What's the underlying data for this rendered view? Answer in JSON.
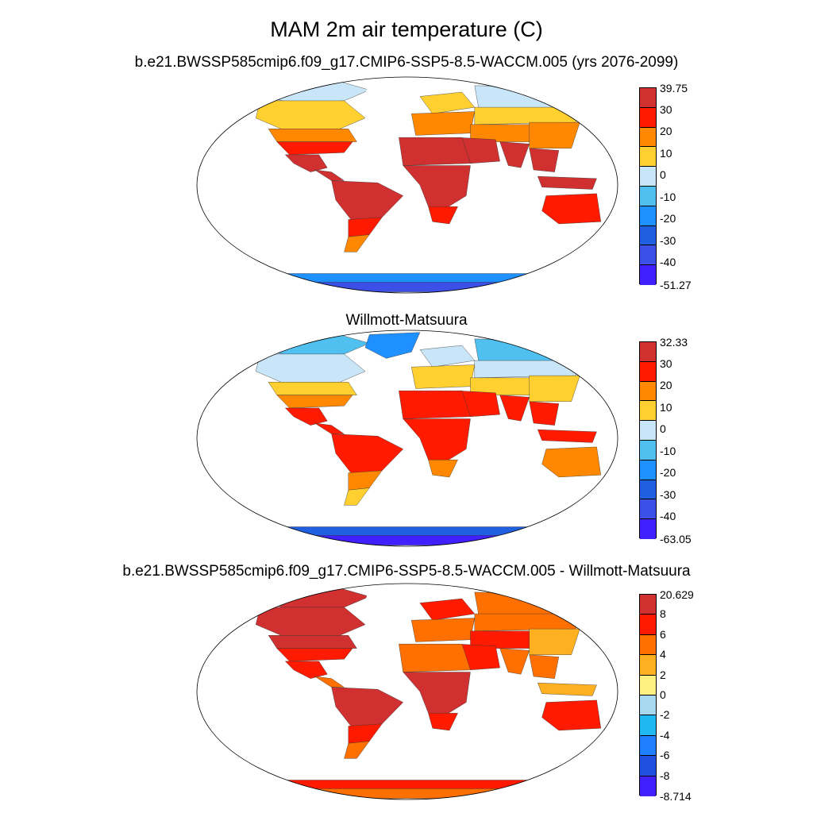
{
  "title": "MAM 2m air temperature (C)",
  "panels": [
    {
      "id": "model",
      "title": "b.e21.BWSSP585cmip6.f09_g17.CMIP6-SSP5-8.5-WACCM.005 (yrs 2076-2099)",
      "colorbar": {
        "labels": [
          "39.75",
          "30",
          "20",
          "10",
          "0",
          "-10",
          "-20",
          "-30",
          "-40",
          "-51.27"
        ],
        "colors": [
          "#d03030",
          "#ff1a00",
          "#ff8800",
          "#ffd030",
          "#c8e6f8",
          "#50c0f0",
          "#1e90ff",
          "#2060e0",
          "#3c50e8",
          "#4020ff"
        ]
      },
      "regions": {
        "arctic_canada": "#c8e6f8",
        "canada": "#ffd030",
        "usa_north": "#ff8800",
        "usa_south": "#ff1a00",
        "mexico": "#d03030",
        "central_america": "#d03030",
        "south_america_north": "#d03030",
        "south_america_south": "#ff1a00",
        "patagonia": "#ff8800",
        "greenland": "#ffffff",
        "europe_north": "#ffd030",
        "europe": "#ff8800",
        "siberia": "#c8e6f8",
        "russia": "#ffd030",
        "central_asia": "#ff8800",
        "middle_east": "#d03030",
        "north_africa": "#d03030",
        "africa": "#d03030",
        "south_africa": "#ff1a00",
        "india": "#d03030",
        "china": "#ff8800",
        "se_asia": "#d03030",
        "indonesia": "#d03030",
        "australia": "#ff1a00",
        "new_zealand": "#ff8800",
        "antarctica": "#1e90ff",
        "antarctica_interior": "#3c50e8"
      }
    },
    {
      "id": "obs",
      "title": "Willmott-Matsuura",
      "colorbar": {
        "labels": [
          "32.33",
          "30",
          "20",
          "10",
          "0",
          "-10",
          "-20",
          "-30",
          "-40",
          "-63.05"
        ],
        "colors": [
          "#d03030",
          "#ff1a00",
          "#ff8800",
          "#ffd030",
          "#c8e6f8",
          "#50c0f0",
          "#1e90ff",
          "#2060e0",
          "#3c50e8",
          "#4020ff"
        ]
      },
      "regions": {
        "arctic_canada": "#50c0f0",
        "canada": "#c8e6f8",
        "usa_north": "#ffd030",
        "usa_south": "#ff8800",
        "mexico": "#ff1a00",
        "central_america": "#ff1a00",
        "south_america_north": "#ff1a00",
        "south_america_south": "#ff8800",
        "patagonia": "#ffd030",
        "greenland": "#1e90ff",
        "europe_north": "#c8e6f8",
        "europe": "#ffd030",
        "siberia": "#50c0f0",
        "russia": "#c8e6f8",
        "central_asia": "#ffd030",
        "middle_east": "#ff1a00",
        "north_africa": "#ff1a00",
        "africa": "#ff1a00",
        "south_africa": "#ff8800",
        "india": "#ff1a00",
        "china": "#ffd030",
        "se_asia": "#ff1a00",
        "indonesia": "#ff1a00",
        "australia": "#ff8800",
        "new_zealand": "#ffd030",
        "antarctica": "#2060e0",
        "antarctica_interior": "#4020ff"
      }
    },
    {
      "id": "diff",
      "title": "b.e21.BWSSP585cmip6.f09_g17.CMIP6-SSP5-8.5-WACCM.005 - Willmott-Matsuura",
      "colorbar": {
        "labels": [
          "20.629",
          "8",
          "6",
          "4",
          "2",
          "0",
          "-2",
          "-4",
          "-6",
          "-8",
          "-8.714"
        ],
        "colors": [
          "#d03030",
          "#ff1a00",
          "#ff7000",
          "#ffb020",
          "#fff080",
          "#a8d8f0",
          "#20b8f0",
          "#1e80ff",
          "#2050e0",
          "#4020ff"
        ]
      },
      "regions": {
        "arctic_canada": "#d03030",
        "canada": "#d03030",
        "usa_north": "#d03030",
        "usa_south": "#ff1a00",
        "mexico": "#ff1a00",
        "central_america": "#ff7000",
        "south_america_north": "#d03030",
        "south_america_south": "#ff1a00",
        "patagonia": "#ff7000",
        "greenland": "#ffffff",
        "europe_north": "#ff1a00",
        "europe": "#ff7000",
        "siberia": "#ff7000",
        "russia": "#ff7000",
        "central_asia": "#ff1a00",
        "middle_east": "#ff1a00",
        "north_africa": "#ff7000",
        "africa": "#d03030",
        "south_africa": "#ff1a00",
        "india": "#ff7000",
        "china": "#ffb020",
        "se_asia": "#ff7000",
        "indonesia": "#ffb020",
        "australia": "#ff1a00",
        "new_zealand": "#ffb020",
        "antarctica": "#ff1a00",
        "antarctica_interior": "#ff7000"
      }
    }
  ]
}
